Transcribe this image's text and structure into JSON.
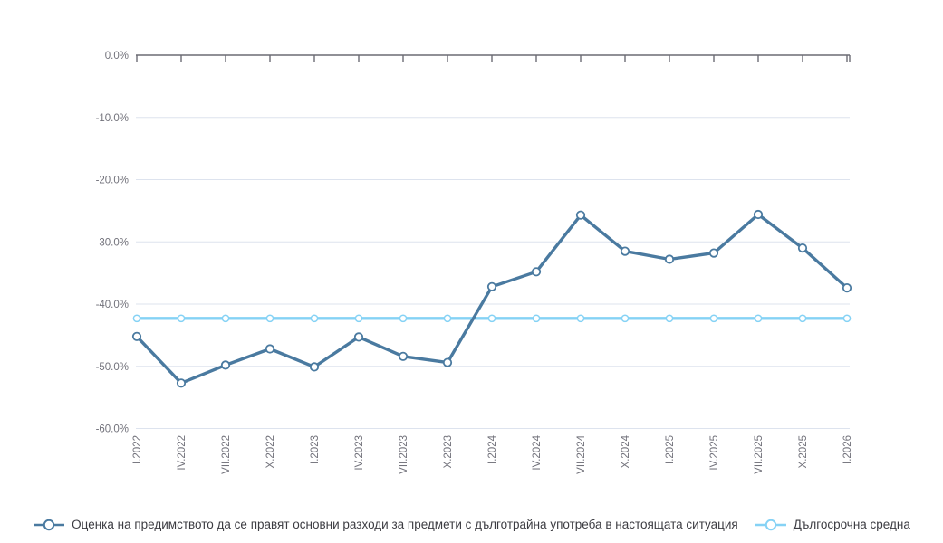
{
  "chart_data": {
    "type": "line",
    "categories": [
      "I.2022",
      "IV.2022",
      "VII.2022",
      "X.2022",
      "I.2023",
      "IV.2023",
      "VII.2023",
      "X.2023",
      "I.2024",
      "IV.2024",
      "VII.2024",
      "X.2024",
      "I.2025",
      "IV.2025",
      "VII.2025",
      "X.2025",
      "I.2026"
    ],
    "series": [
      {
        "name": "Оценка на предимството да се правят основни разходи за предмети с дълготрайна употреба в настоящата ситуация",
        "color": "#4a7aa0",
        "values": [
          -45.2,
          -52.7,
          -49.8,
          -47.2,
          -50.1,
          -45.3,
          -48.4,
          -49.4,
          -37.2,
          -34.8,
          -25.7,
          -31.5,
          -32.8,
          -31.8,
          -25.6,
          -31.0,
          -37.4
        ]
      },
      {
        "name": "Дългосрочна средна",
        "color": "#85d2f5",
        "values": [
          -42.3,
          -42.3,
          -42.3,
          -42.3,
          -42.3,
          -42.3,
          -42.3,
          -42.3,
          -42.3,
          -42.3,
          -42.3,
          -42.3,
          -42.3,
          -42.3,
          -42.3,
          -42.3,
          -42.3
        ]
      }
    ],
    "title": "",
    "xlabel": "",
    "ylabel": "",
    "ylim": [
      -60,
      0
    ],
    "yticks": [
      0,
      -10,
      -20,
      -30,
      -40,
      -50,
      -60
    ],
    "ytick_labels": [
      "0.0%",
      "-10.0%",
      "-20.0%",
      "-30.0%",
      "-40.0%",
      "-50.0%",
      "-60.0%"
    ],
    "grid": true,
    "legend_position": "bottom",
    "x_axis_position": "top",
    "unit": "%"
  },
  "colors": {
    "grid": "#dde3ee",
    "axis": "#6b6b74",
    "tick_text": "#72727b",
    "legend_text": "#3c3c42",
    "background": "#ffffff"
  }
}
